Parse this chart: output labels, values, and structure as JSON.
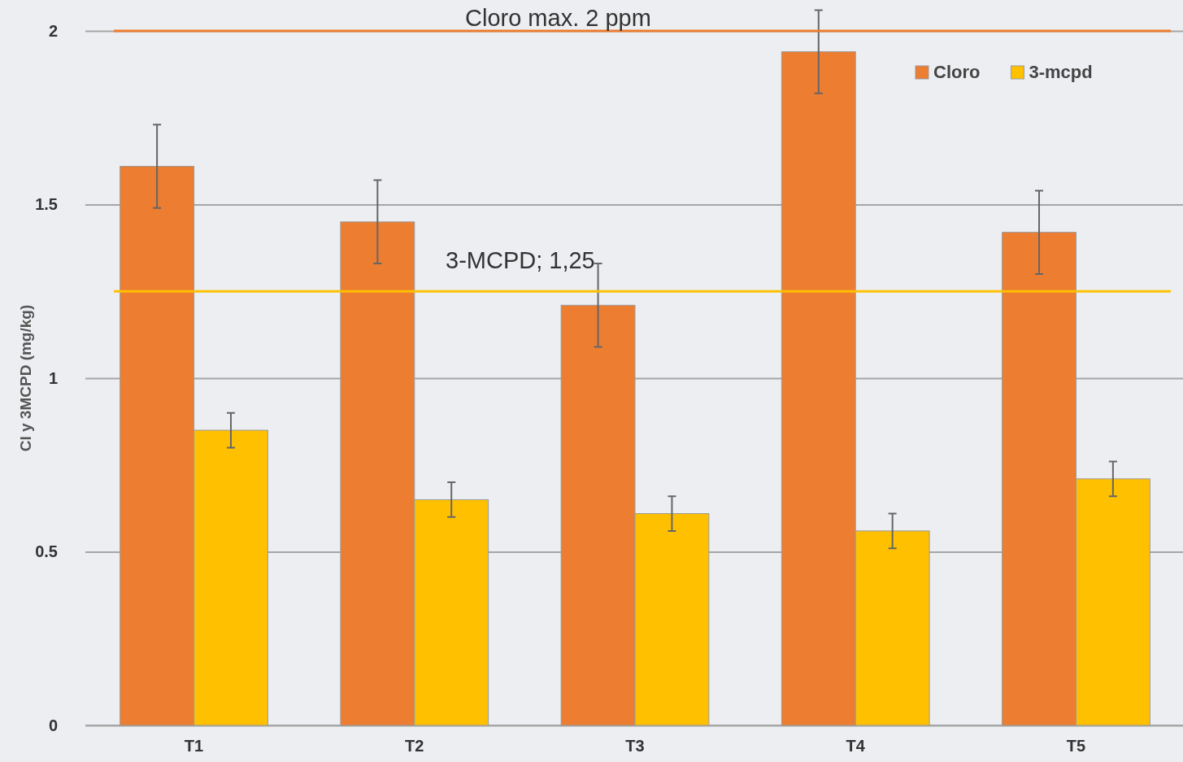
{
  "chart_data": {
    "type": "bar",
    "ylabel": "Cl y 3MCPD (mg/kg)",
    "categories": [
      "T1",
      "T2",
      "T3",
      "T4",
      "T5"
    ],
    "series": [
      {
        "name": "Cloro",
        "color": "#ed7d31",
        "values": [
          1.61,
          1.45,
          1.21,
          1.94,
          1.42
        ],
        "errors": [
          0.12,
          0.12,
          0.12,
          0.12,
          0.12
        ]
      },
      {
        "name": "3-mcpd",
        "color": "#ffc000",
        "values": [
          0.85,
          0.65,
          0.61,
          0.56,
          0.71
        ],
        "errors": [
          0.05,
          0.05,
          0.05,
          0.05,
          0.05
        ]
      }
    ],
    "ylim": [
      0,
      2
    ],
    "yticks": [
      0,
      0.5,
      1,
      1.5,
      2
    ],
    "grid": "y",
    "legend": "top right",
    "ref_lines": [
      {
        "axis": "y",
        "value": 2,
        "label": "Cloro max. 2 ppm",
        "color": "#ed7d31"
      },
      {
        "axis": "y",
        "value": 1.25,
        "label": "3-MCPD; 1,25",
        "color": "#ffc000"
      }
    ]
  }
}
